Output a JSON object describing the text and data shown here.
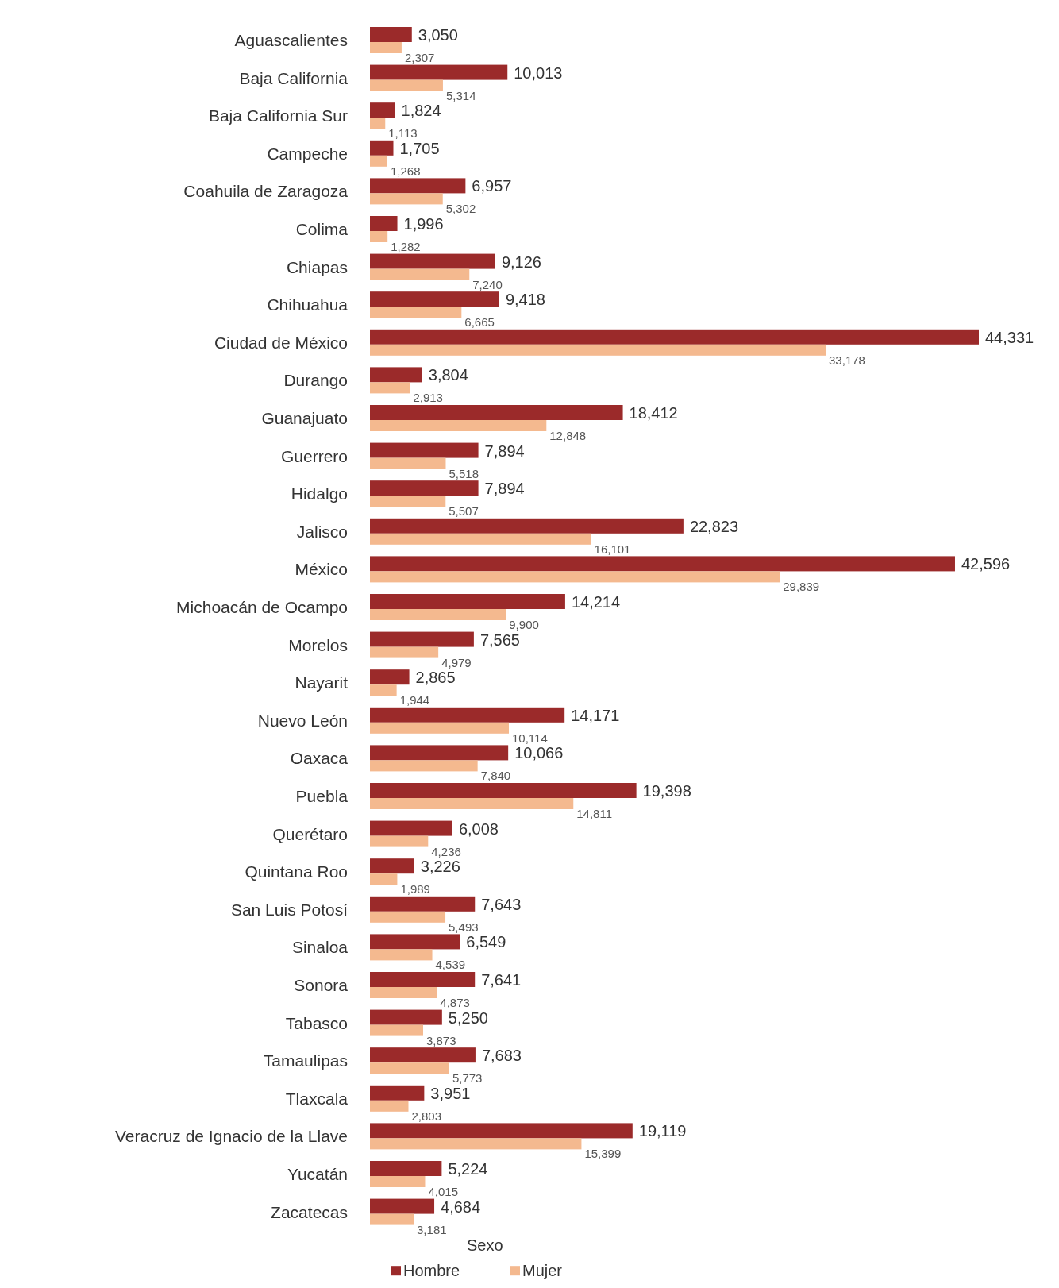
{
  "chart_data": {
    "type": "bar",
    "orientation": "horizontal",
    "categories": [
      "Aguascalientes",
      "Baja California",
      "Baja California Sur",
      "Campeche",
      "Coahuila de Zaragoza",
      "Colima",
      "Chiapas",
      "Chihuahua",
      "Ciudad de México",
      "Durango",
      "Guanajuato",
      "Guerrero",
      "Hidalgo",
      "Jalisco",
      "México",
      "Michoacán de Ocampo",
      "Morelos",
      "Nayarit",
      "Nuevo León",
      "Oaxaca",
      "Puebla",
      "Querétaro",
      "Quintana Roo",
      "San Luis Potosí",
      "Sinaloa",
      "Sonora",
      "Tabasco",
      "Tamaulipas",
      "Tlaxcala",
      "Veracruz de Ignacio de la Llave",
      "Yucatán",
      "Zacatecas"
    ],
    "series": [
      {
        "name": "Hombre",
        "color": "#9b2a2a",
        "values": [
          3050,
          10013,
          1824,
          1705,
          6957,
          1996,
          9126,
          9418,
          44331,
          3804,
          18412,
          7894,
          7894,
          22823,
          42596,
          14214,
          7565,
          2865,
          14171,
          10066,
          19398,
          6008,
          3226,
          7643,
          6549,
          7641,
          5250,
          7683,
          3951,
          19119,
          5224,
          4684
        ],
        "value_labels": [
          "3,050",
          "10,013",
          "1,824",
          "1,705",
          "6,957",
          "1,996",
          "9,126",
          "9,418",
          "44,331",
          "3,804",
          "18,412",
          "7,894",
          "7,894",
          "22,823",
          "42,596",
          "14,214",
          "7,565",
          "2,865",
          "14,171",
          "10,066",
          "19,398",
          "6,008",
          "3,226",
          "7,643",
          "6,549",
          "7,641",
          "5,250",
          "7,683",
          "3,951",
          "19,119",
          "5,224",
          "4,684"
        ]
      },
      {
        "name": "Mujer",
        "color": "#f4b98f",
        "values": [
          2307,
          5314,
          1113,
          1268,
          5302,
          1282,
          7240,
          6665,
          33178,
          2913,
          12848,
          5518,
          5507,
          16101,
          29839,
          9900,
          4979,
          1944,
          10114,
          7840,
          14811,
          4236,
          1989,
          5493,
          4539,
          4873,
          3873,
          5773,
          2803,
          15399,
          4015,
          3181
        ],
        "value_labels": [
          "2,307",
          "5,314",
          "1,113",
          "1,268",
          "5,302",
          "1,282",
          "7,240",
          "6,665",
          "33,178",
          "2,913",
          "12,848",
          "5,518",
          "5,507",
          "16,101",
          "29,839",
          "9,900",
          "4,979",
          "1,944",
          "10,114",
          "7,840",
          "14,811",
          "4,236",
          "1,989",
          "5,493",
          "4,539",
          "4,873",
          "3,873",
          "5,773",
          "2,803",
          "15,399",
          "4,015",
          "3,181"
        ]
      }
    ],
    "legend": "bottom",
    "legend_title": "Sexo"
  }
}
